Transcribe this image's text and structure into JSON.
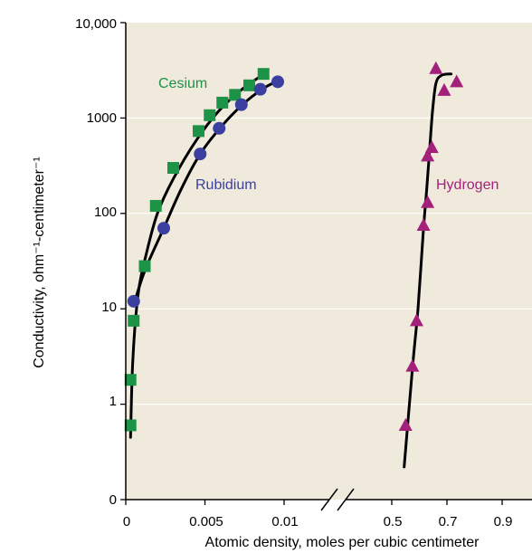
{
  "colors": {
    "plot_background": "#efeadb",
    "gridline": "#ffffff",
    "curve": "#000000",
    "cesium": "#1d9347",
    "rubidium": "#3a3fa0",
    "hydrogen": "#a3217a"
  },
  "chart_data": {
    "type": "scatter",
    "title": "",
    "xlabel": "Atomic density, moles per cubic centimeter",
    "ylabel": "Conductivity, ohm⁻¹-centimeter⁻¹",
    "y_scale": "log",
    "ylim": [
      0.1,
      10000
    ],
    "grid": true,
    "x_axis_break": true,
    "xlim_left_segment": [
      0,
      0.012
    ],
    "xlim_right_segment": [
      0.4,
      0.95
    ],
    "x_tick_labels": [
      "0",
      "0.005",
      "0.01",
      "0.5",
      "0.7",
      "0.9"
    ],
    "x_ticks_left": [
      0,
      0.005,
      0.01
    ],
    "x_ticks_right": [
      0.5,
      0.7,
      0.9
    ],
    "y_tick_labels": [
      "0",
      "1",
      "10",
      "100",
      "1000",
      "10,000"
    ],
    "y_ticks": [
      0.1,
      1,
      10,
      100,
      1000,
      10000
    ],
    "series": [
      {
        "name": "Cesium",
        "marker": "square",
        "segment": "left",
        "points": [
          [
            0.0003,
            0.6
          ],
          [
            0.0003,
            1.8
          ],
          [
            0.0005,
            7.5
          ],
          [
            0.0012,
            28
          ],
          [
            0.0019,
            120
          ],
          [
            0.003,
            300
          ],
          [
            0.0046,
            730
          ],
          [
            0.0053,
            1070
          ],
          [
            0.0061,
            1450
          ],
          [
            0.0069,
            1750
          ],
          [
            0.0078,
            2200
          ],
          [
            0.0087,
            2900
          ]
        ]
      },
      {
        "name": "Rubidium",
        "marker": "circle",
        "segment": "left",
        "points": [
          [
            0.0005,
            12
          ],
          [
            0.0024,
            70
          ],
          [
            0.0047,
            420
          ],
          [
            0.0059,
            780
          ],
          [
            0.0073,
            1380
          ],
          [
            0.0085,
            2000
          ],
          [
            0.0096,
            2400
          ]
        ]
      },
      {
        "name": "Hydrogen",
        "marker": "triangle",
        "segment": "right",
        "points": [
          [
            0.55,
            0.6
          ],
          [
            0.575,
            2.5
          ],
          [
            0.59,
            7.5
          ],
          [
            0.615,
            75
          ],
          [
            0.63,
            130
          ],
          [
            0.63,
            400
          ],
          [
            0.645,
            490
          ],
          [
            0.66,
            3300
          ],
          [
            0.69,
            1950
          ],
          [
            0.735,
            2400
          ]
        ]
      }
    ],
    "fit_curves": [
      {
        "series": "Cesium",
        "segment": "left",
        "points": [
          [
            0.0003,
            0.45
          ],
          [
            0.00045,
            3
          ],
          [
            0.0008,
            15
          ],
          [
            0.0013,
            38
          ],
          [
            0.002,
            100
          ],
          [
            0.003,
            230
          ],
          [
            0.0045,
            600
          ],
          [
            0.006,
            1250
          ],
          [
            0.0075,
            2100
          ],
          [
            0.0089,
            3000
          ]
        ]
      },
      {
        "series": "Rubidium",
        "segment": "left",
        "points": [
          [
            0.0005,
            11
          ],
          [
            0.0012,
            25
          ],
          [
            0.0024,
            70
          ],
          [
            0.0035,
            180
          ],
          [
            0.0047,
            420
          ],
          [
            0.006,
            800
          ],
          [
            0.0073,
            1350
          ],
          [
            0.0086,
            2000
          ],
          [
            0.0096,
            2450
          ]
        ]
      },
      {
        "series": "Hydrogen",
        "segment": "right",
        "points": [
          [
            0.545,
            0.22
          ],
          [
            0.575,
            2.4
          ],
          [
            0.595,
            10
          ],
          [
            0.615,
            70
          ],
          [
            0.628,
            200
          ],
          [
            0.638,
            500
          ],
          [
            0.648,
            1200
          ],
          [
            0.66,
            2300
          ],
          [
            0.68,
            2800
          ],
          [
            0.715,
            2900
          ]
        ]
      }
    ]
  }
}
